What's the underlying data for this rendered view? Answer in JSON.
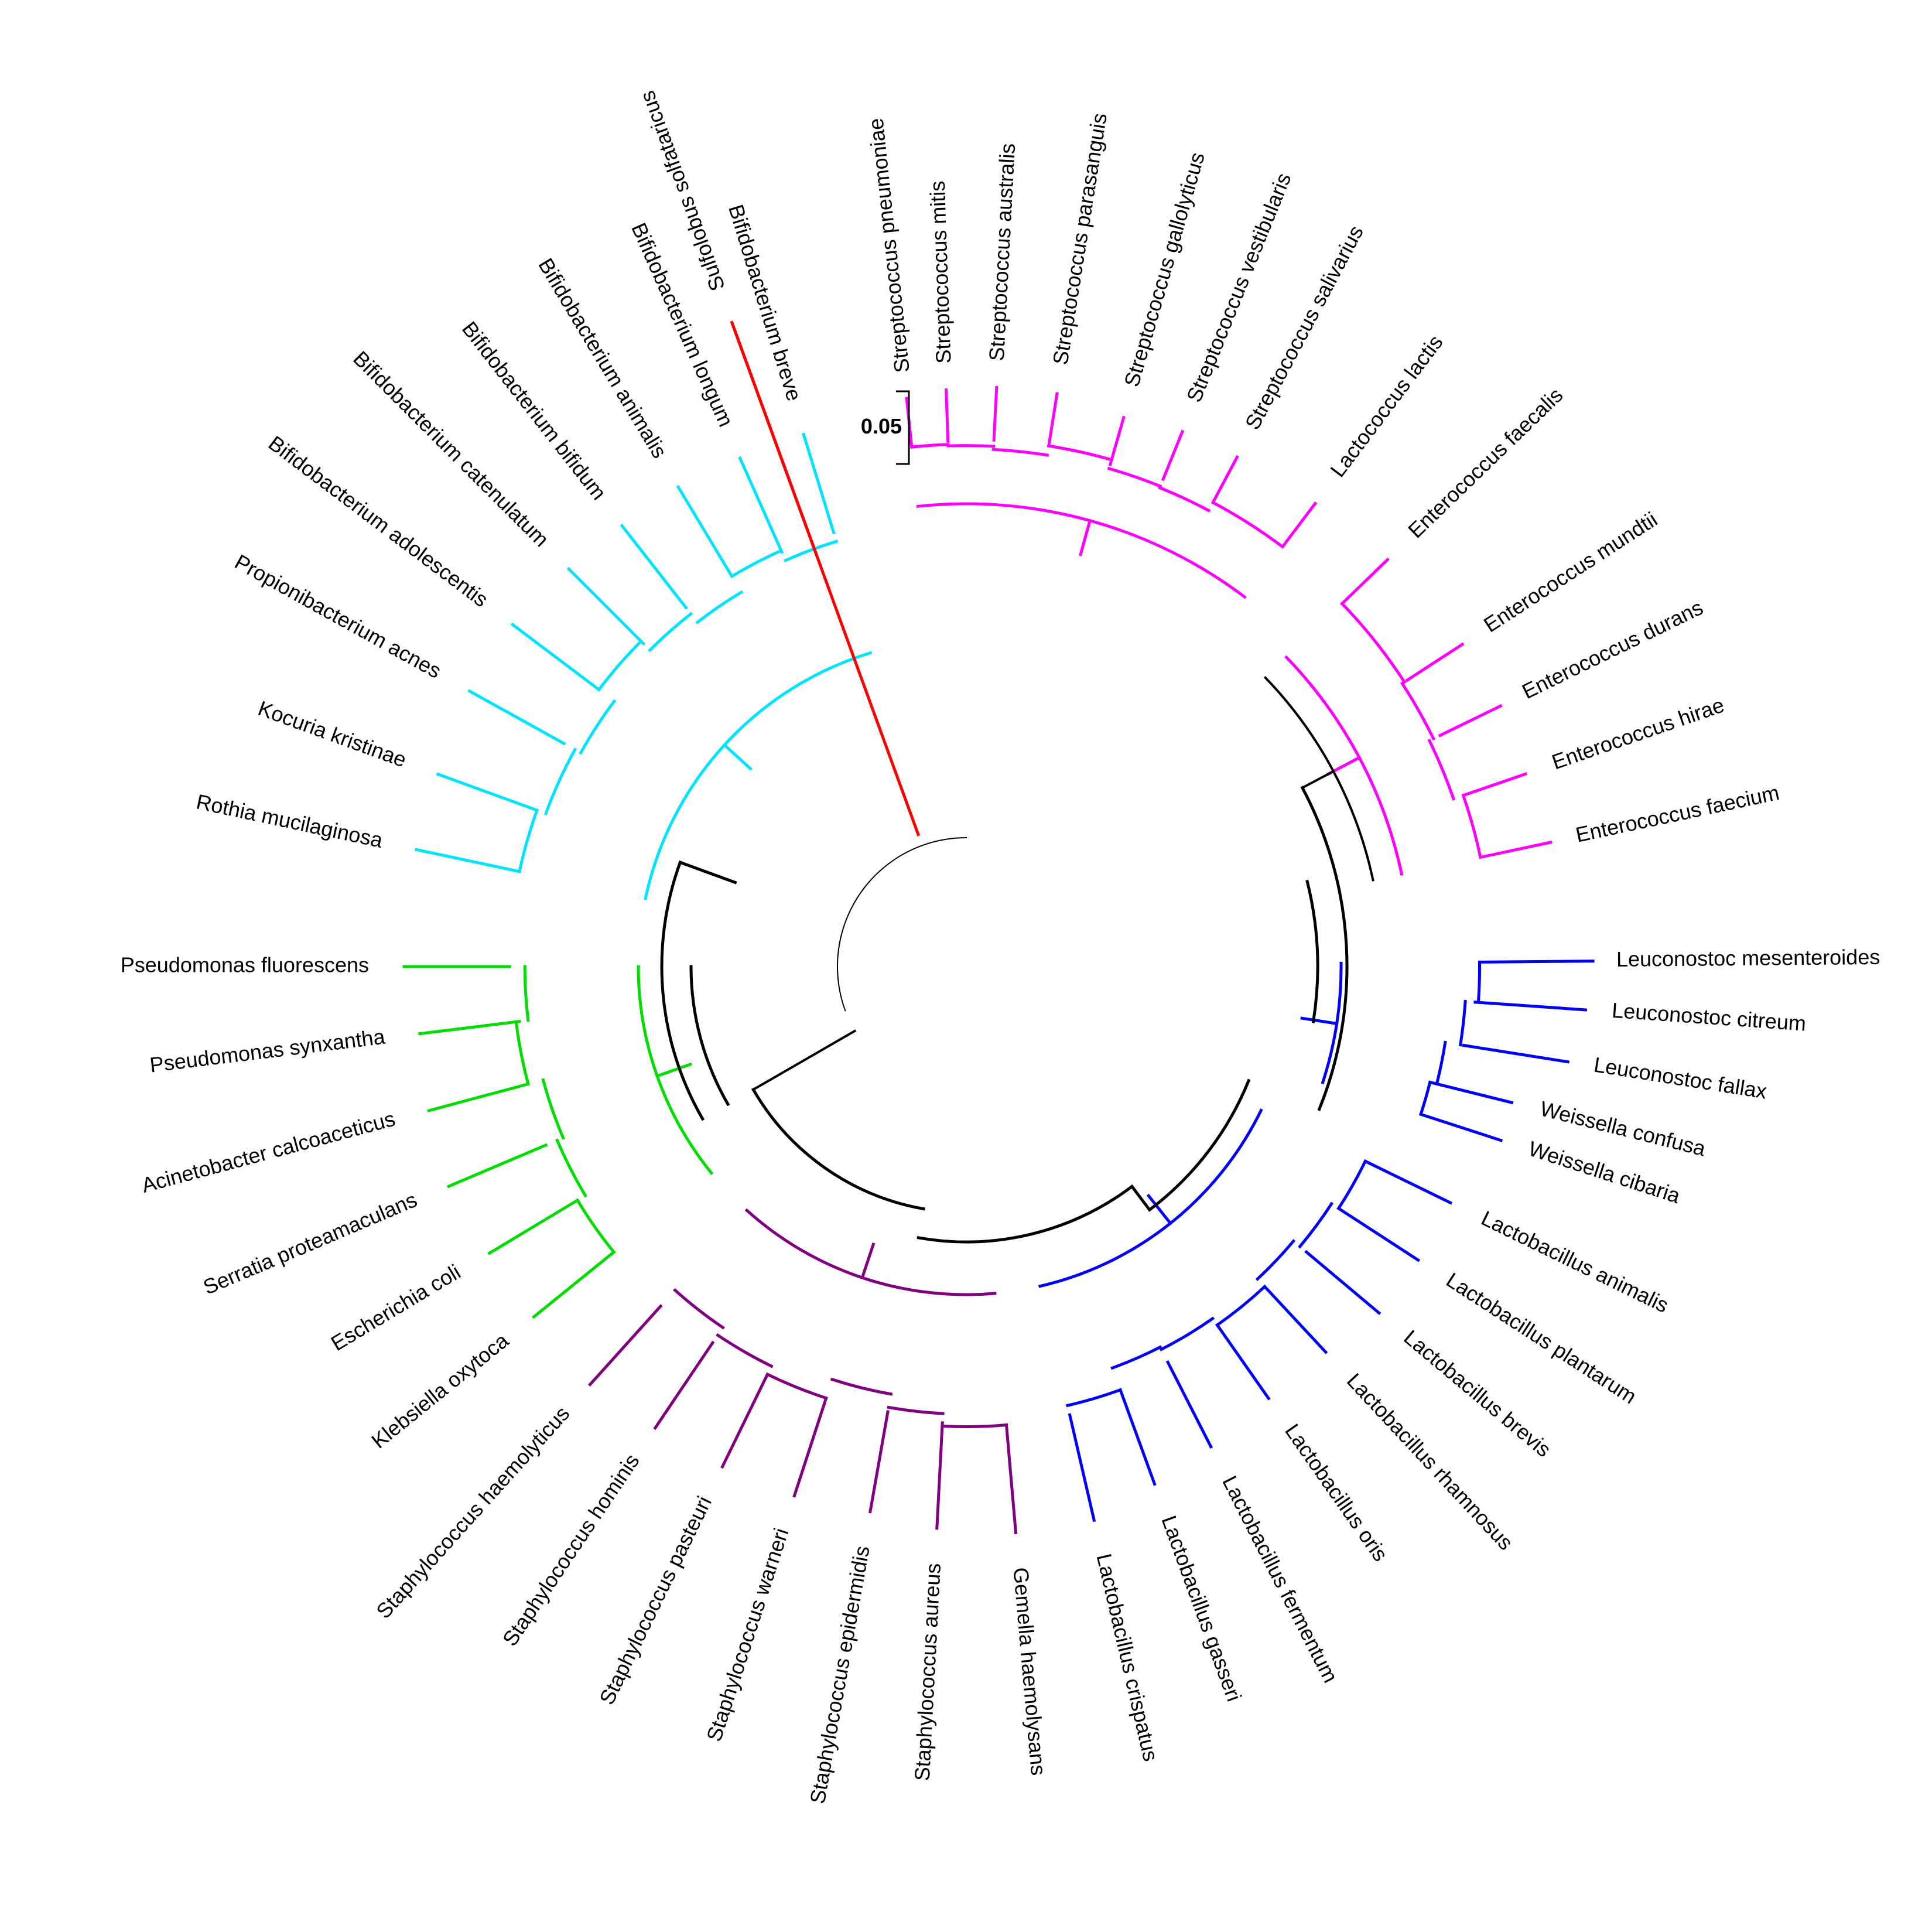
{
  "scale_bar": {
    "label": "0.05",
    "length": 0.05
  },
  "clade_colors": {
    "archaea": "#ff0000",
    "streptococcaceae": "#ff00ff",
    "enterococcaceae": "#ff00ff",
    "leuconostocaceae": "#0000ff",
    "lactobacillaceae": "#0000ff",
    "staphylococcaceae": "#800080",
    "proteobacteria": "#00dd00",
    "actinobacteria": "#00e5ff",
    "backbone": "#000000"
  },
  "taxa": [
    {
      "name": "Sulfolobus solfataricus",
      "clade": "archaea"
    },
    {
      "name": "Streptococcus pneumoniae",
      "clade": "streptococcaceae"
    },
    {
      "name": "Streptococcus mitis",
      "clade": "streptococcaceae"
    },
    {
      "name": "Streptococcus australis",
      "clade": "streptococcaceae"
    },
    {
      "name": "Streptococcus parasanguis",
      "clade": "streptococcaceae"
    },
    {
      "name": "Streptococcus gallolyticus",
      "clade": "streptococcaceae"
    },
    {
      "name": "Streptococcus vestibularis",
      "clade": "streptococcaceae"
    },
    {
      "name": "Streptococcus salivarius",
      "clade": "streptococcaceae"
    },
    {
      "name": "Lactococcus lactis",
      "clade": "streptococcaceae"
    },
    {
      "name": "Enterococcus faecalis",
      "clade": "enterococcaceae"
    },
    {
      "name": "Enterococcus mundtii",
      "clade": "enterococcaceae"
    },
    {
      "name": "Enterococcus durans",
      "clade": "enterococcaceae"
    },
    {
      "name": "Enterococcus hirae",
      "clade": "enterococcaceae"
    },
    {
      "name": "Enterococcus faecium",
      "clade": "enterococcaceae"
    },
    {
      "name": "Leuconostoc mesenteroides",
      "clade": "leuconostocaceae"
    },
    {
      "name": "Leuconostoc citreum",
      "clade": "leuconostocaceae"
    },
    {
      "name": "Leuconostoc fallax",
      "clade": "leuconostocaceae"
    },
    {
      "name": "Weissella confusa",
      "clade": "leuconostocaceae"
    },
    {
      "name": "Weissella cibaria",
      "clade": "leuconostocaceae"
    },
    {
      "name": "Lactobacillus animalis",
      "clade": "lactobacillaceae"
    },
    {
      "name": "Lactobacillus plantarum",
      "clade": "lactobacillaceae"
    },
    {
      "name": "Lactobacillus brevis",
      "clade": "lactobacillaceae"
    },
    {
      "name": "Lactobacillus rhamnosus",
      "clade": "lactobacillaceae"
    },
    {
      "name": "Lactobacillus oris",
      "clade": "lactobacillaceae"
    },
    {
      "name": "Lactobacillus fermentum",
      "clade": "lactobacillaceae"
    },
    {
      "name": "Lactobacillus gasseri",
      "clade": "lactobacillaceae"
    },
    {
      "name": "Lactobacillus crispatus",
      "clade": "lactobacillaceae"
    },
    {
      "name": "Gemella haemolysans",
      "clade": "staphylococcaceae"
    },
    {
      "name": "Staphylococcus aureus",
      "clade": "staphylococcaceae"
    },
    {
      "name": "Staphylococcus epidermidis",
      "clade": "staphylococcaceae"
    },
    {
      "name": "Staphylococcus warneri",
      "clade": "staphylococcaceae"
    },
    {
      "name": "Staphylococcus pasteuri",
      "clade": "staphylococcaceae"
    },
    {
      "name": "Staphylococcus hominis",
      "clade": "staphylococcaceae"
    },
    {
      "name": "Staphylococcus haemolyticus",
      "clade": "staphylococcaceae"
    },
    {
      "name": "Klebsiella oxytoca",
      "clade": "proteobacteria"
    },
    {
      "name": "Escherichia coli",
      "clade": "proteobacteria"
    },
    {
      "name": "Serratia proteamaculans",
      "clade": "proteobacteria"
    },
    {
      "name": "Acinetobacter calcoaceticus",
      "clade": "proteobacteria"
    },
    {
      "name": "Pseudomonas synxantha",
      "clade": "proteobacteria"
    },
    {
      "name": "Pseudomonas fluorescens",
      "clade": "proteobacteria"
    },
    {
      "name": "Rothia mucilaginosa",
      "clade": "actinobacteria"
    },
    {
      "name": "Kocuria kristinae",
      "clade": "actinobacteria"
    },
    {
      "name": "Propionibacterium acnes",
      "clade": "actinobacteria"
    },
    {
      "name": "Bifidobacterium adolescentis",
      "clade": "actinobacteria"
    },
    {
      "name": "Bifidobacterium catenulatum",
      "clade": "actinobacteria"
    },
    {
      "name": "Bifidobacterium bifidum",
      "clade": "actinobacteria"
    },
    {
      "name": "Bifidobacterium animalis",
      "clade": "actinobacteria"
    },
    {
      "name": "Bifidobacterium longum",
      "clade": "actinobacteria"
    },
    {
      "name": "Bifidobacterium breve",
      "clade": "actinobacteria"
    }
  ]
}
